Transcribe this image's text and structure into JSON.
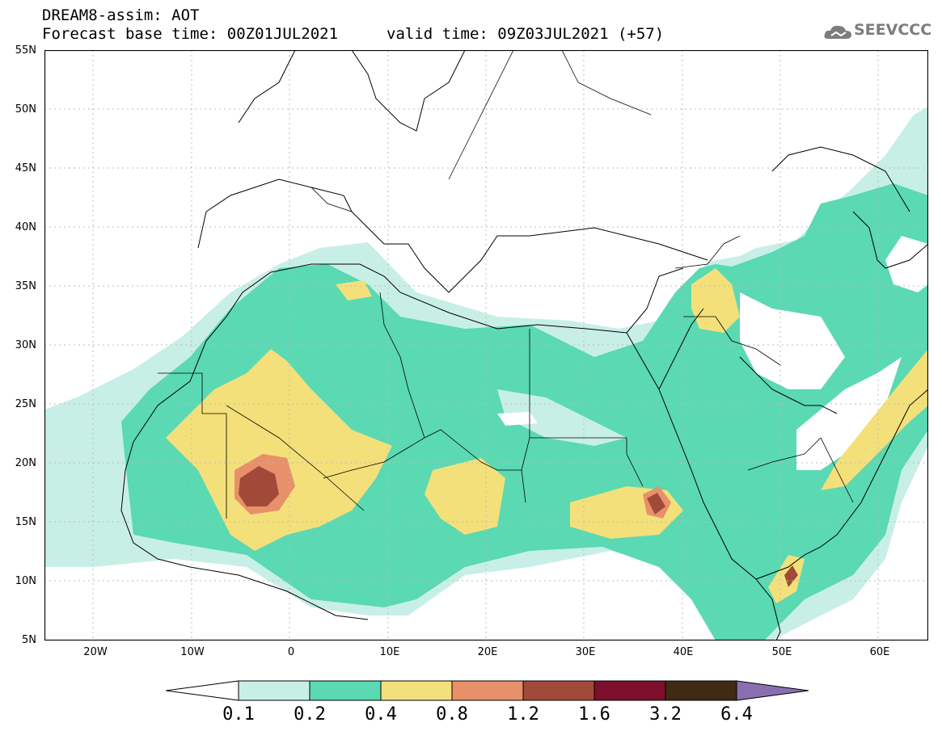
{
  "title": {
    "line1": "DREAM8-assim: AOT",
    "base_time": "Forecast base time: 00Z01JUL2021",
    "valid_time": "valid time: 09Z03JUL2021 (+57)"
  },
  "logo": {
    "text": "SEEVCCC"
  },
  "map": {
    "lat_labels": [
      "55N",
      "50N",
      "45N",
      "40N",
      "35N",
      "30N",
      "25N",
      "20N",
      "15N",
      "10N",
      "5N"
    ],
    "lon_labels": [
      "20W",
      "10W",
      "0",
      "10E",
      "20E",
      "30E",
      "40E",
      "50E",
      "60E"
    ],
    "lat_range": [
      5,
      55
    ],
    "lon_range": [
      -25,
      65
    ]
  },
  "legend": {
    "labels": [
      "0.1",
      "0.2",
      "0.4",
      "0.8",
      "1.2",
      "1.6",
      "3.2",
      "6.4"
    ],
    "colors": [
      "#ffffff",
      "#c8efe6",
      "#5ad9b3",
      "#f3e07a",
      "#e8906a",
      "#a24a3a",
      "#7c0f2c",
      "#3f2a14",
      "#8a6fb0"
    ]
  }
}
